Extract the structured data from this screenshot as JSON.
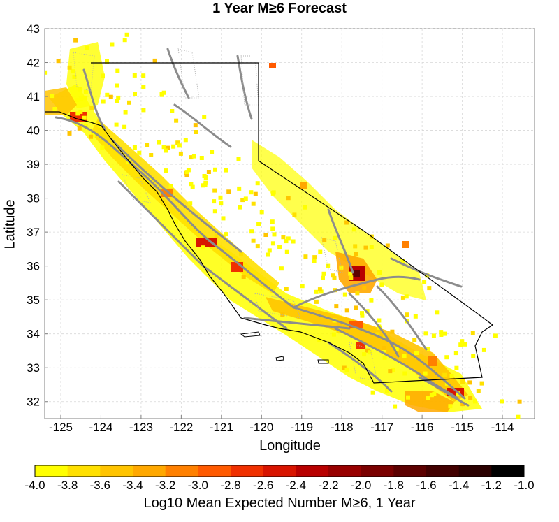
{
  "title": "1 Year M≥6 Forecast",
  "map": {
    "x_axis_label": "Longitude",
    "y_axis_label": "Latitude",
    "lon_range": [
      -125.4,
      -113.2
    ],
    "lat_range": [
      31.5,
      43.0
    ],
    "x_ticks": [
      "-125",
      "-124",
      "-123",
      "-122",
      "-121",
      "-120",
      "-119",
      "-118",
      "-117",
      "-116",
      "-115",
      "-114"
    ],
    "y_ticks": [
      "43",
      "42",
      "41",
      "40",
      "39",
      "38",
      "37",
      "36",
      "35",
      "34",
      "33",
      "32"
    ],
    "grid": true
  },
  "colorbar": {
    "label": "Log10 Mean Expected Number M≥6, 1 Year",
    "tick_labels": [
      "-4.0",
      "-3.8",
      "-3.6",
      "-3.4",
      "-3.2",
      "-3.0",
      "-2.8",
      "-2.6",
      "-2.4",
      "-2.2",
      "-2.0",
      "-1.8",
      "-1.6",
      "-1.4",
      "-1.2",
      "-1.0"
    ],
    "colors": [
      "#ffff00",
      "#ffe000",
      "#ffc400",
      "#ffa800",
      "#ff8000",
      "#ff5a00",
      "#f03000",
      "#d81400",
      "#b80000",
      "#980000",
      "#7a0000",
      "#5c0000",
      "#420000",
      "#2a0000",
      "#000000"
    ]
  }
}
